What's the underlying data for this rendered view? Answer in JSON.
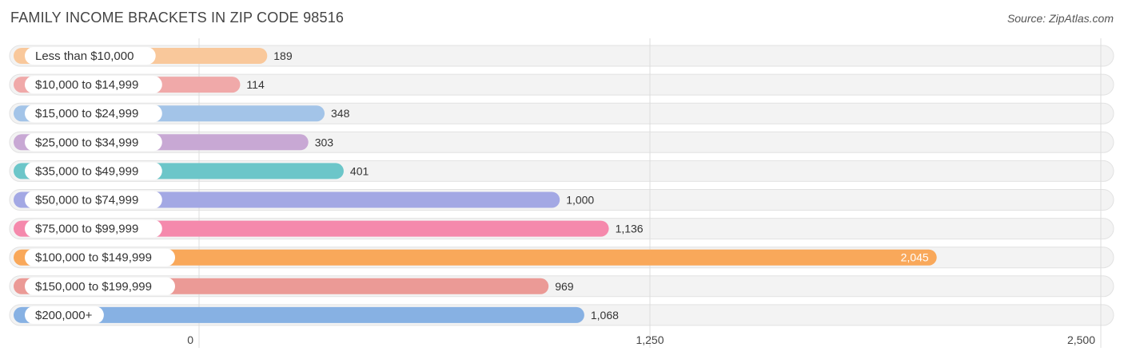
{
  "title": "FAMILY INCOME BRACKETS IN ZIP CODE 98516",
  "source": "Source: ZipAtlas.com",
  "chart_data": {
    "type": "bar",
    "orientation": "horizontal",
    "categories": [
      "Less than $10,000",
      "$10,000 to $14,999",
      "$15,000 to $24,999",
      "$25,000 to $34,999",
      "$35,000 to $49,999",
      "$50,000 to $74,999",
      "$75,000 to $99,999",
      "$100,000 to $149,999",
      "$150,000 to $199,999",
      "$200,000+"
    ],
    "values": [
      189,
      114,
      348,
      303,
      401,
      1000,
      1136,
      2045,
      969,
      1068
    ],
    "value_labels": [
      "189",
      "114",
      "348",
      "303",
      "401",
      "1,000",
      "1,136",
      "2,045",
      "969",
      "1,068"
    ],
    "colors": [
      "#f9c89b",
      "#f0a9a9",
      "#a3c4e8",
      "#c8a8d4",
      "#6cc6c9",
      "#a3a8e4",
      "#f589ac",
      "#f9a85a",
      "#eb9a96",
      "#87b1e3"
    ],
    "xlim": [
      0,
      2500
    ],
    "xticks": [
      0,
      1250,
      2500
    ],
    "xtick_labels": [
      "0",
      "1,250",
      "2,500"
    ],
    "grid": true
  }
}
